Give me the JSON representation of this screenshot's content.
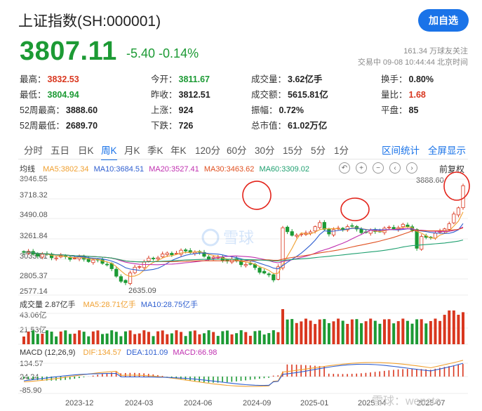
{
  "header": {
    "title": "上证指数(SH:000001)",
    "add_button": "加自选"
  },
  "quote": {
    "price": "3807.11",
    "change": "-5.40",
    "change_pct": "-0.14%",
    "followers": "161.34 万球友关注",
    "trade_time": "交易中 09-08 10:44:44 北京时间"
  },
  "stats": {
    "high": {
      "label": "最高：",
      "value": "3832.53"
    },
    "low": {
      "label": "最低：",
      "value": "3804.94"
    },
    "w52_high": {
      "label": "52周最高：",
      "value": "3888.60"
    },
    "w52_low": {
      "label": "52周最低：",
      "value": "2689.70"
    },
    "open": {
      "label": "今开：",
      "value": "3811.67"
    },
    "prev_close": {
      "label": "昨收：",
      "value": "3812.51"
    },
    "up": {
      "label": "上涨：",
      "value": "924"
    },
    "down": {
      "label": "下跌：",
      "value": "726"
    },
    "volume": {
      "label": "成交量：",
      "value": "3.62亿手"
    },
    "turnover": {
      "label": "成交额：",
      "value": "5615.81亿"
    },
    "amplitude": {
      "label": "振幅：",
      "value": "0.72%"
    },
    "mkt_cap": {
      "label": "总市值：",
      "value": "61.02万亿"
    },
    "turnover_rate": {
      "label": "换手：",
      "value": "0.80%"
    },
    "vol_ratio": {
      "label": "量比：",
      "value": "1.68"
    },
    "flat": {
      "label": "平盘：",
      "value": "85"
    }
  },
  "tabs": [
    "分时",
    "五日",
    "日K",
    "周K",
    "月K",
    "季K",
    "年K",
    "120分",
    "60分",
    "30分",
    "15分",
    "5分",
    "1分"
  ],
  "active_tab": "周K",
  "right_tabs": {
    "interval": "区间统计",
    "fullscreen": "全屏显示"
  },
  "adjust_label": "前复权",
  "colors": {
    "up": "#d9371f",
    "down": "#1c9a34",
    "accent": "#1a73e8",
    "ma5": "#f0a030",
    "ma10": "#2f5fd0",
    "ma20": "#c030b0",
    "ma30": "#e05020",
    "ma60": "#1fa070"
  },
  "price_panel": {
    "legend": {
      "title": "均线",
      "ma5": "MA5:3802.34",
      "ma10": "MA10:3684.51",
      "ma20": "MA20:3527.41",
      "ma30": "MA30:3463.62",
      "ma60": "MA60:3309.02"
    },
    "y_ticks": [
      "3946.55",
      "3718.32",
      "3490.08",
      "3261.84",
      "3033.61",
      "2805.37",
      "2577.14"
    ],
    "max_label": "3888.60",
    "min_label": "2635.09"
  },
  "volume_panel": {
    "legend": {
      "title": "成交量 2.87亿手",
      "ma5": "MA5:28.71亿手",
      "ma10": "MA10:28.75亿手"
    },
    "y_ticks": [
      "43.06亿",
      "21.53亿"
    ]
  },
  "macd_panel": {
    "legend": {
      "title": "MACD (12,26,9)",
      "dif": "DIF:134.57",
      "dea": "DEA:101.09",
      "macd": "MACD:66.98"
    },
    "y_ticks": [
      "134.57",
      "24.34",
      "-85.90"
    ]
  },
  "x_ticks": [
    "2023-12",
    "2024-03",
    "2024-06",
    "2024-09",
    "2025-01",
    "2025-04",
    "2025-07"
  ],
  "watermark": "雪球",
  "watermark_user": "雪球：wenste"
}
